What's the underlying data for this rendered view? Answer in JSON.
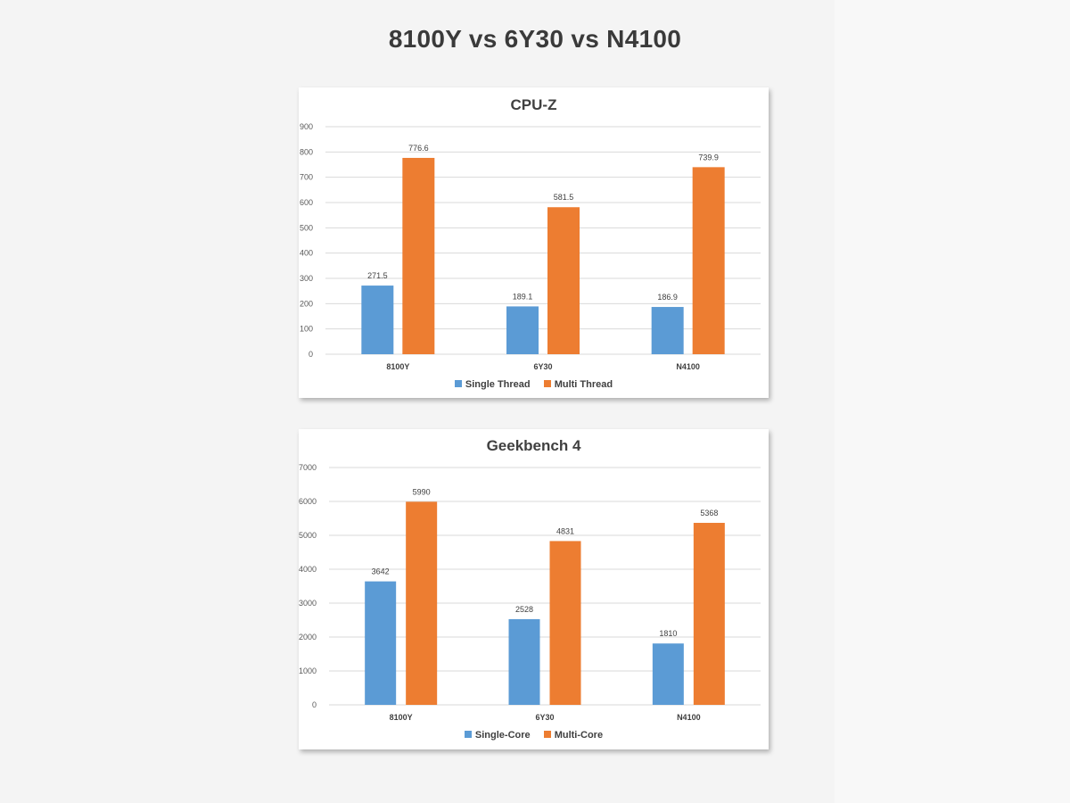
{
  "page_title": "8100Y vs 6Y30 vs N4100",
  "colors": {
    "single": "#5b9bd5",
    "multi": "#ed7d31"
  },
  "chart_data": [
    {
      "type": "bar",
      "title": "CPU-Z",
      "categories": [
        "8100Y",
        "6Y30",
        "N4100"
      ],
      "series": [
        {
          "name": "Single Thread",
          "values": [
            271.5,
            189.1,
            186.9
          ],
          "color": "#5b9bd5"
        },
        {
          "name": "Multi Thread",
          "values": [
            776.6,
            581.5,
            739.9
          ],
          "color": "#ed7d31"
        }
      ],
      "yticks": [
        0,
        100,
        200,
        300,
        400,
        500,
        600,
        700,
        800,
        900
      ],
      "ylim": [
        0,
        900
      ],
      "data_labels": [
        "271.5",
        "189.1",
        "186.9",
        "776.6",
        "581.5",
        "739.9"
      ],
      "grid": true,
      "legend": "bottom"
    },
    {
      "type": "bar",
      "title": "Geekbench 4",
      "categories": [
        "8100Y",
        "6Y30",
        "N4100"
      ],
      "series": [
        {
          "name": "Single-Core",
          "values": [
            3642,
            2528,
            1810
          ],
          "color": "#5b9bd5"
        },
        {
          "name": "Multi-Core",
          "values": [
            5990,
            4831,
            5368
          ],
          "color": "#ed7d31"
        }
      ],
      "yticks": [
        0,
        1000,
        2000,
        3000,
        4000,
        5000,
        6000,
        7000
      ],
      "ylim": [
        0,
        7000
      ],
      "data_labels": [
        "3642",
        "2528",
        "1810",
        "5990",
        "4831",
        "5368"
      ],
      "grid": true,
      "legend": "bottom"
    }
  ]
}
